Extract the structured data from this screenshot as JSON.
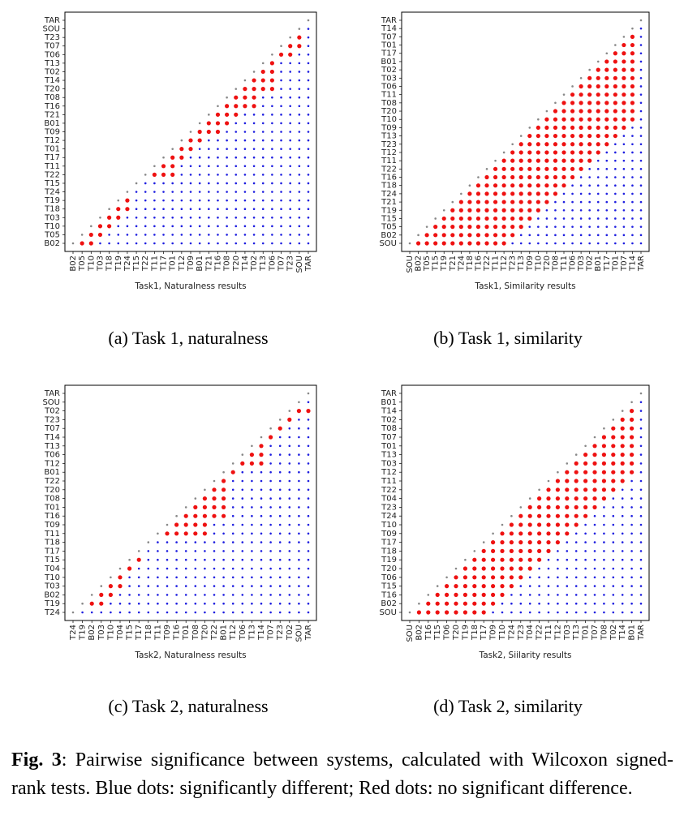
{
  "colors": {
    "blue": "#1f1fe0",
    "red": "#ee1111",
    "grey": "#888888"
  },
  "captions": {
    "a": "(a) Task 1, naturalness",
    "b": "(b) Task 1, similarity",
    "c": "(c) Task 2, naturalness",
    "d": "(d) Task 2, similarity"
  },
  "figure_caption": {
    "label": "Fig. 3",
    "text": ":  Pairwise significance between systems, calculated with Wilcoxon signed-rank tests. Blue dots: significantly different; Red dots: no significant difference."
  },
  "chart_data": [
    {
      "id": "a",
      "type": "scatter",
      "xlabel": "Task1, Naturalness results",
      "systems": [
        "B02",
        "T05",
        "T10",
        "T03",
        "T18",
        "T19",
        "T24",
        "T15",
        "T22",
        "T11",
        "T17",
        "T01",
        "T12",
        "T09",
        "B01",
        "T21",
        "T16",
        "T08",
        "T20",
        "T14",
        "T02",
        "T13",
        "T06",
        "T07",
        "T23",
        "SOU",
        "TAR"
      ],
      "diagonal": "grey",
      "upper": "blue",
      "red_cells": [
        [
          0,
          1
        ],
        [
          0,
          2
        ],
        [
          1,
          2
        ],
        [
          1,
          3
        ],
        [
          2,
          3
        ],
        [
          2,
          4
        ],
        [
          3,
          4
        ],
        [
          3,
          5
        ],
        [
          4,
          5
        ],
        [
          4,
          6
        ],
        [
          5,
          6
        ],
        [
          8,
          9
        ],
        [
          8,
          10
        ],
        [
          8,
          11
        ],
        [
          9,
          10
        ],
        [
          9,
          11
        ],
        [
          10,
          11
        ],
        [
          10,
          12
        ],
        [
          11,
          12
        ],
        [
          11,
          13
        ],
        [
          12,
          13
        ],
        [
          12,
          14
        ],
        [
          13,
          14
        ],
        [
          13,
          15
        ],
        [
          13,
          16
        ],
        [
          14,
          15
        ],
        [
          14,
          16
        ],
        [
          14,
          17
        ],
        [
          15,
          16
        ],
        [
          15,
          17
        ],
        [
          15,
          18
        ],
        [
          16,
          17
        ],
        [
          16,
          18
        ],
        [
          16,
          19
        ],
        [
          16,
          20
        ],
        [
          17,
          18
        ],
        [
          17,
          19
        ],
        [
          17,
          20
        ],
        [
          18,
          19
        ],
        [
          18,
          20
        ],
        [
          18,
          21
        ],
        [
          18,
          22
        ],
        [
          19,
          20
        ],
        [
          19,
          21
        ],
        [
          19,
          22
        ],
        [
          20,
          21
        ],
        [
          20,
          22
        ],
        [
          21,
          22
        ],
        [
          22,
          23
        ],
        [
          22,
          24
        ],
        [
          23,
          24
        ],
        [
          23,
          25
        ],
        [
          24,
          25
        ]
      ]
    },
    {
      "id": "b",
      "type": "scatter",
      "xlabel": "Task1, Similarity results",
      "systems": [
        "SOU",
        "B02",
        "T05",
        "T15",
        "T19",
        "T21",
        "T24",
        "T18",
        "T16",
        "T22",
        "T11",
        "T12",
        "T23",
        "T13",
        "T09",
        "T10",
        "T20",
        "T08",
        "T11",
        "T06",
        "T03",
        "T02",
        "B01",
        "T17",
        "T01",
        "T07",
        "T14",
        "TAR"
      ],
      "diagonal": "grey",
      "upper": "blue",
      "red_window": 11,
      "red_end": 27
    },
    {
      "id": "c",
      "type": "scatter",
      "xlabel": "Task2, Naturalness results",
      "systems": [
        "T24",
        "T19",
        "B02",
        "T03",
        "T10",
        "T04",
        "T15",
        "T17",
        "T18",
        "T11",
        "T09",
        "T16",
        "T01",
        "T08",
        "T20",
        "T22",
        "B01",
        "T12",
        "T06",
        "T13",
        "T14",
        "T07",
        "T23",
        "T02",
        "SOU",
        "TAR"
      ],
      "diagonal": "grey",
      "upper": "blue",
      "red_cells": [
        [
          1,
          2
        ],
        [
          1,
          3
        ],
        [
          2,
          3
        ],
        [
          2,
          4
        ],
        [
          3,
          4
        ],
        [
          3,
          5
        ],
        [
          4,
          5
        ],
        [
          5,
          6
        ],
        [
          6,
          7
        ],
        [
          9,
          10
        ],
        [
          9,
          11
        ],
        [
          9,
          12
        ],
        [
          9,
          13
        ],
        [
          9,
          14
        ],
        [
          10,
          11
        ],
        [
          10,
          12
        ],
        [
          10,
          13
        ],
        [
          10,
          14
        ],
        [
          11,
          12
        ],
        [
          11,
          13
        ],
        [
          11,
          14
        ],
        [
          11,
          15
        ],
        [
          11,
          16
        ],
        [
          12,
          13
        ],
        [
          12,
          14
        ],
        [
          12,
          15
        ],
        [
          12,
          16
        ],
        [
          13,
          14
        ],
        [
          13,
          15
        ],
        [
          13,
          16
        ],
        [
          14,
          15
        ],
        [
          14,
          16
        ],
        [
          15,
          16
        ],
        [
          16,
          17
        ],
        [
          17,
          18
        ],
        [
          17,
          19
        ],
        [
          17,
          20
        ],
        [
          18,
          19
        ],
        [
          18,
          20
        ],
        [
          19,
          20
        ],
        [
          20,
          21
        ],
        [
          21,
          22
        ],
        [
          22,
          23
        ],
        [
          23,
          24
        ],
        [
          23,
          25
        ]
      ]
    },
    {
      "id": "d",
      "type": "scatter",
      "xlabel": "Task2, Siilarity results",
      "systems": [
        "SOU",
        "B02",
        "T16",
        "T15",
        "T06",
        "T20",
        "T19",
        "T18",
        "T17",
        "T09",
        "T10",
        "T24",
        "T23",
        "T04",
        "T22",
        "T11",
        "T12",
        "T03",
        "T13",
        "T01",
        "T07",
        "T08",
        "T02",
        "T14",
        "B01",
        "TAR"
      ],
      "diagonal": "grey",
      "upper": "blue",
      "red_window": 8,
      "red_end": 25
    }
  ]
}
